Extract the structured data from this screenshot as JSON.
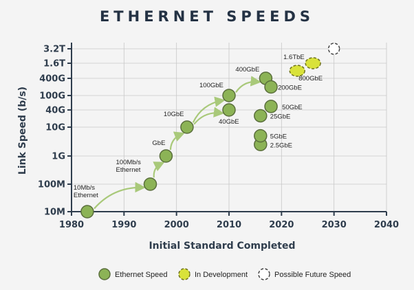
{
  "chart_data": {
    "type": "scatter",
    "title": "ETHERNET SPEEDS",
    "xlabel": "Initial Standard Completed",
    "ylabel": "Link Speed (b/s)",
    "xlim": [
      1980,
      2040
    ],
    "x_ticks": [
      1980,
      1990,
      2000,
      2010,
      2020,
      2030,
      2040
    ],
    "y_scale": "log",
    "y_ticks": [
      {
        "value": 10000000,
        "label": "10M"
      },
      {
        "value": 100000000,
        "label": "100M"
      },
      {
        "value": 1000000000,
        "label": "1G"
      },
      {
        "value": 10000000000,
        "label": "10G"
      },
      {
        "value": 40000000000,
        "label": "40G"
      },
      {
        "value": 100000000000,
        "label": "100G"
      },
      {
        "value": 400000000000,
        "label": "400G"
      },
      {
        "value": 1600000000000,
        "label": "1.6T"
      },
      {
        "value": 3200000000000,
        "label": "3.2T"
      }
    ],
    "grid": true,
    "series": [
      {
        "name": "Ethernet Speed",
        "style": "green",
        "points": [
          {
            "x": 1983,
            "y": 10000000,
            "label": "10Mb/s\nEthernet"
          },
          {
            "x": 1995,
            "y": 100000000,
            "label": "100Mb/s\nEthernet"
          },
          {
            "x": 1998,
            "y": 1000000000,
            "label": "GbE"
          },
          {
            "x": 2002,
            "y": 10000000000,
            "label": "10GbE"
          },
          {
            "x": 2010,
            "y": 40000000000,
            "label": "40GbE"
          },
          {
            "x": 2010,
            "y": 100000000000,
            "label": "100GbE"
          },
          {
            "x": 2016,
            "y": 2500000000,
            "label": "2.5GbE"
          },
          {
            "x": 2016,
            "y": 5000000000,
            "label": "5GbE"
          },
          {
            "x": 2016,
            "y": 25000000000,
            "label": "25GbE"
          },
          {
            "x": 2017,
            "y": 400000000000,
            "label": "400GbE"
          },
          {
            "x": 2018,
            "y": 50000000000,
            "label": "50GbE"
          },
          {
            "x": 2018,
            "y": 200000000000,
            "label": "200GbE"
          }
        ]
      },
      {
        "name": "In Development",
        "style": "yellow-dashed",
        "points": [
          {
            "x": 2023,
            "y": 800000000000,
            "label": "800GbE"
          },
          {
            "x": 2026,
            "y": 1600000000000,
            "label": "1.6TbE"
          }
        ]
      },
      {
        "name": "Possible Future Speed",
        "style": "white-dashed",
        "points": [
          {
            "x": 2030,
            "y": 3200000000000,
            "label": ""
          }
        ]
      }
    ],
    "trend_arrows": [
      {
        "from": [
          1983,
          10000000
        ],
        "to": [
          1995,
          100000000
        ]
      },
      {
        "from": [
          1995,
          100000000
        ],
        "to": [
          1998,
          1000000000
        ]
      },
      {
        "from": [
          1998,
          1000000000
        ],
        "to": [
          2002,
          10000000000
        ]
      },
      {
        "from": [
          2002,
          10000000000
        ],
        "to": [
          2010,
          100000000000
        ]
      },
      {
        "from": [
          2002,
          10000000000
        ],
        "to": [
          2010,
          40000000000
        ]
      },
      {
        "from": [
          2010,
          100000000000
        ],
        "to": [
          2017,
          400000000000
        ]
      }
    ],
    "legend": {
      "position": "bottom",
      "entries": [
        "Ethernet Speed",
        "In Development",
        "Possible Future Speed"
      ]
    }
  },
  "colors": {
    "green_fill": "#8cb356",
    "green_stroke": "#5a6e3c",
    "yellow_fill": "#d9e23a",
    "yellow_stroke": "#6f7220",
    "arrow": "#a9c97a",
    "axis": "#2f3d4d",
    "grid": "#c8c8c8"
  }
}
